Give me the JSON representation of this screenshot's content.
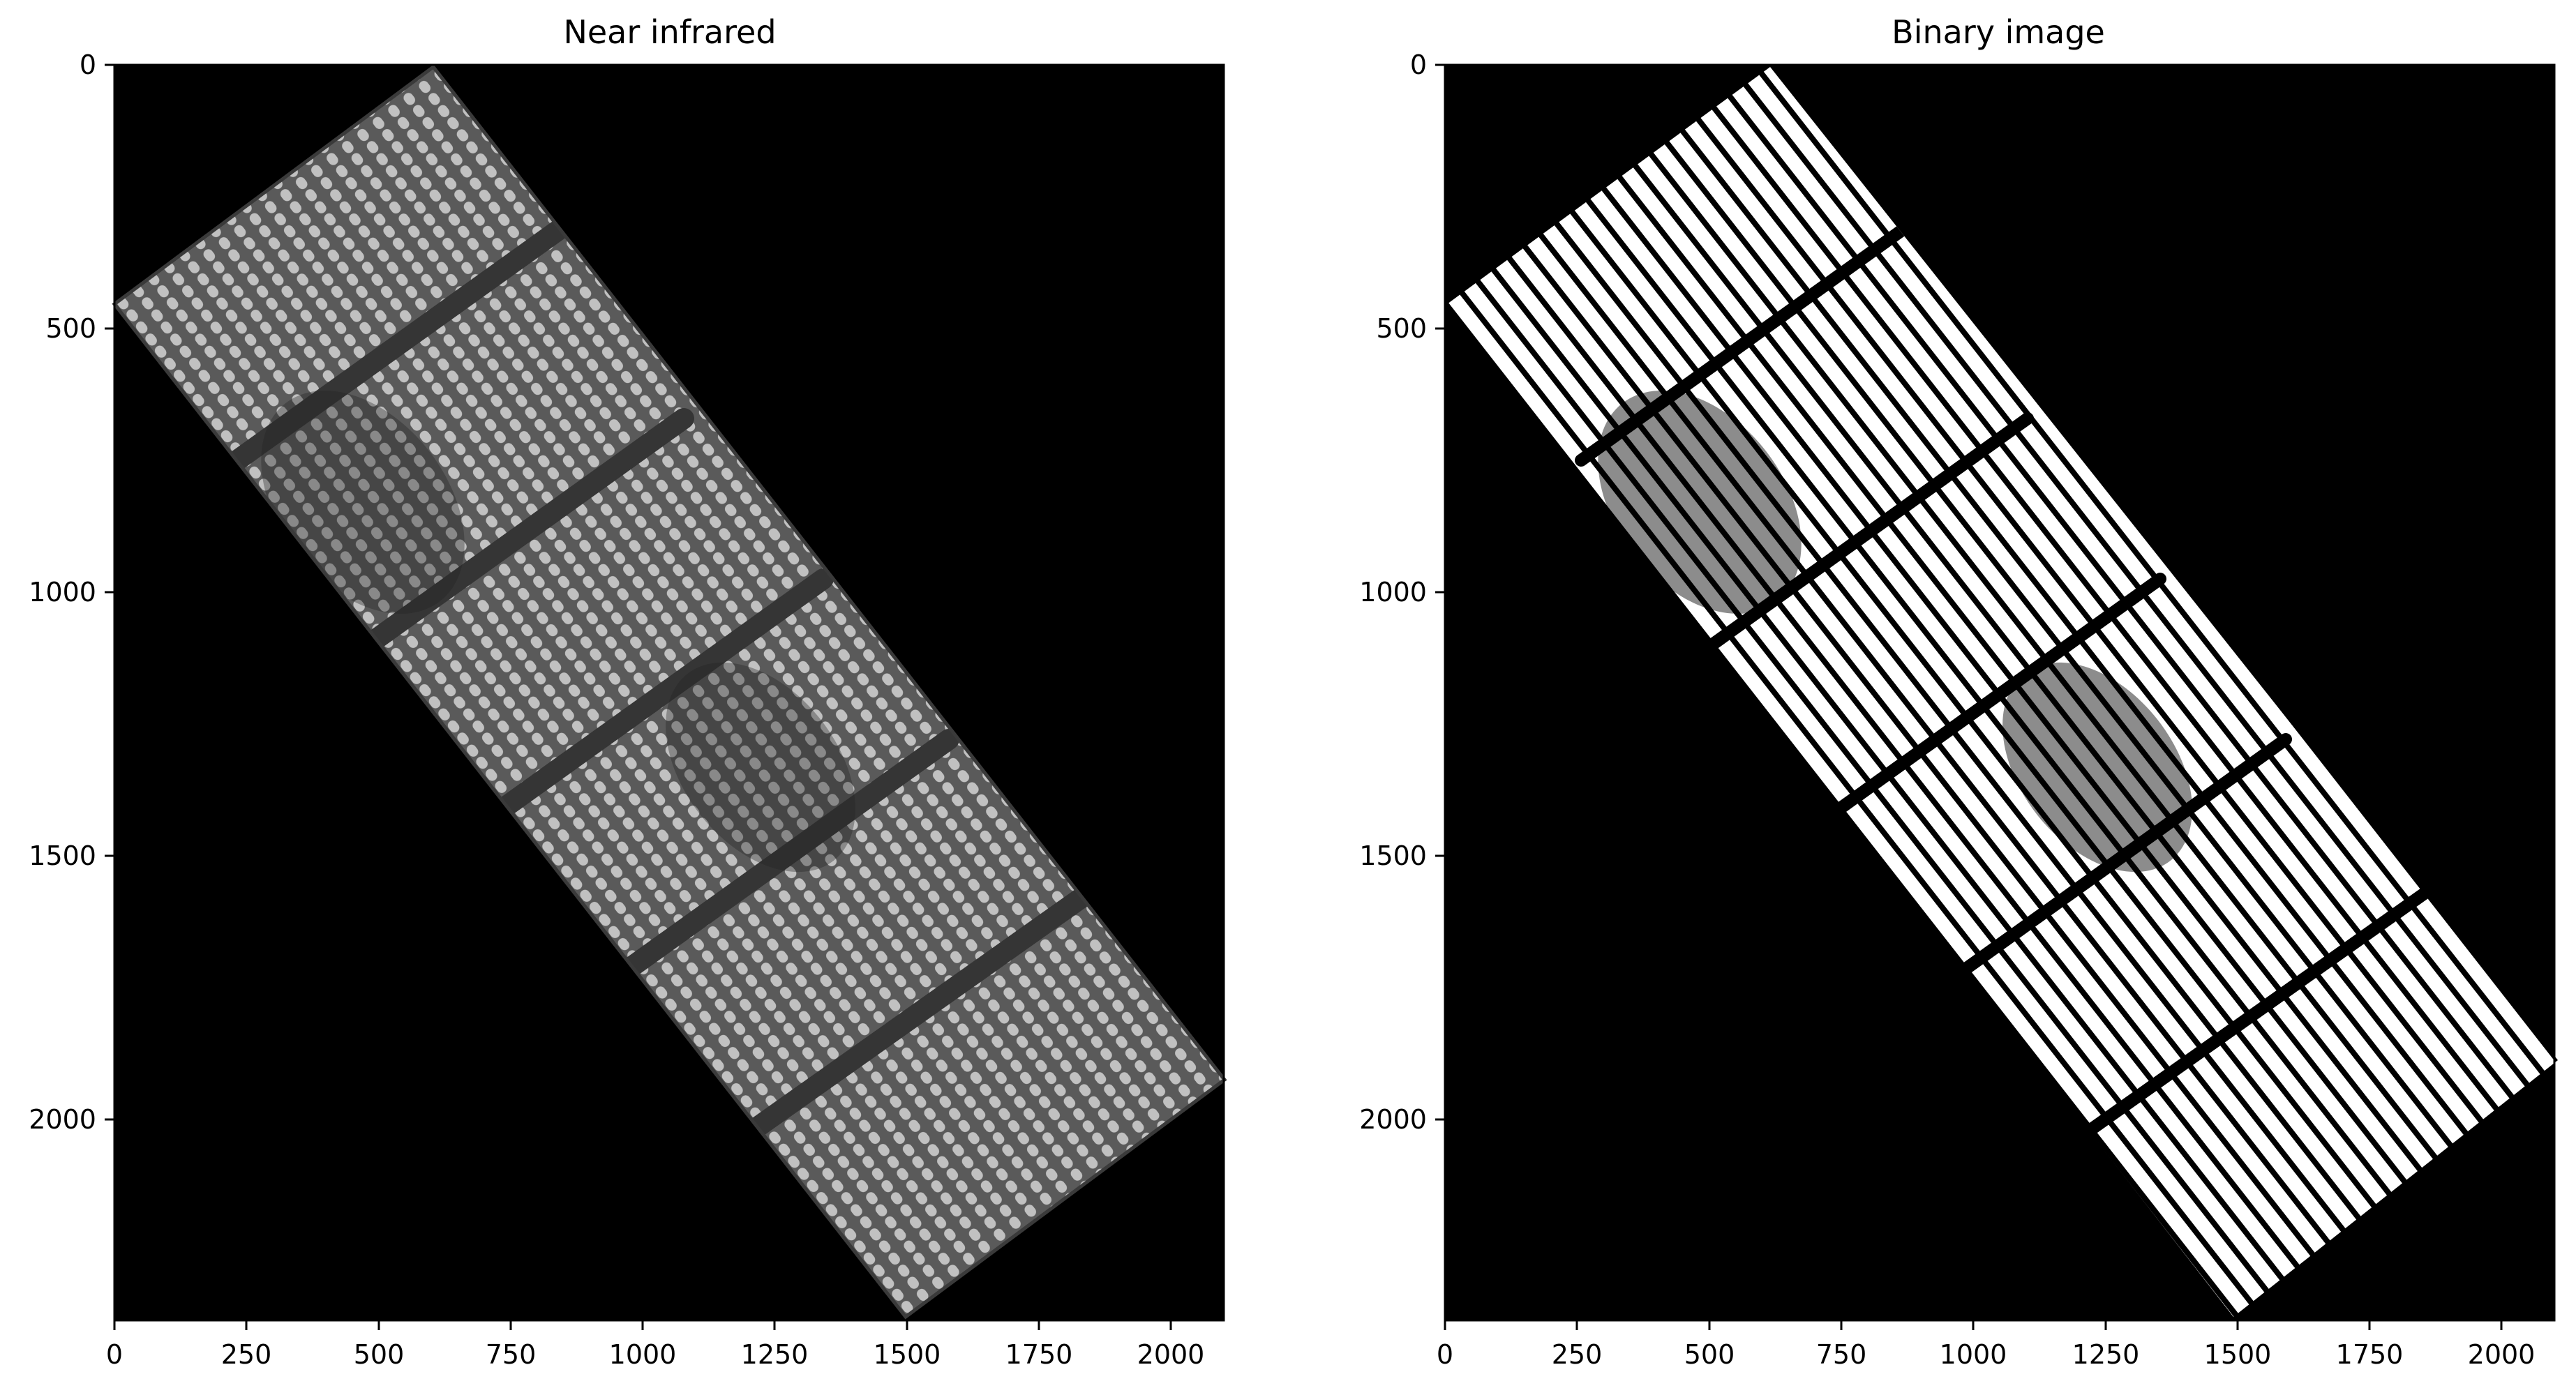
{
  "figure": {
    "panels": [
      {
        "title": "Near infrared",
        "x_ticks": [
          "0",
          "250",
          "500",
          "750",
          "1000",
          "1250",
          "1500",
          "1750",
          "2000"
        ],
        "y_ticks": [
          "0",
          "500",
          "1000",
          "1500",
          "2000"
        ],
        "xlim": [
          0,
          2100
        ],
        "ylim": [
          2380,
          0
        ],
        "image": "grayscale near-infrared aerial image of a rotated field with crop rows"
      },
      {
        "title": "Binary image",
        "x_ticks": [
          "0",
          "250",
          "500",
          "750",
          "1000",
          "1250",
          "1500",
          "1750",
          "2000"
        ],
        "y_ticks": [
          "0",
          "500",
          "1000",
          "1500",
          "2000"
        ],
        "xlim": [
          0,
          2100
        ],
        "ylim": [
          2380,
          0
        ],
        "image": "thresholded black and white image of the same field"
      }
    ]
  },
  "colors": {
    "background": "#000000",
    "nir_field": "#6f6f6f",
    "nir_rows": "#c8c8c8",
    "binary_field": "#ffffff",
    "binary_gaps": "#000000"
  }
}
